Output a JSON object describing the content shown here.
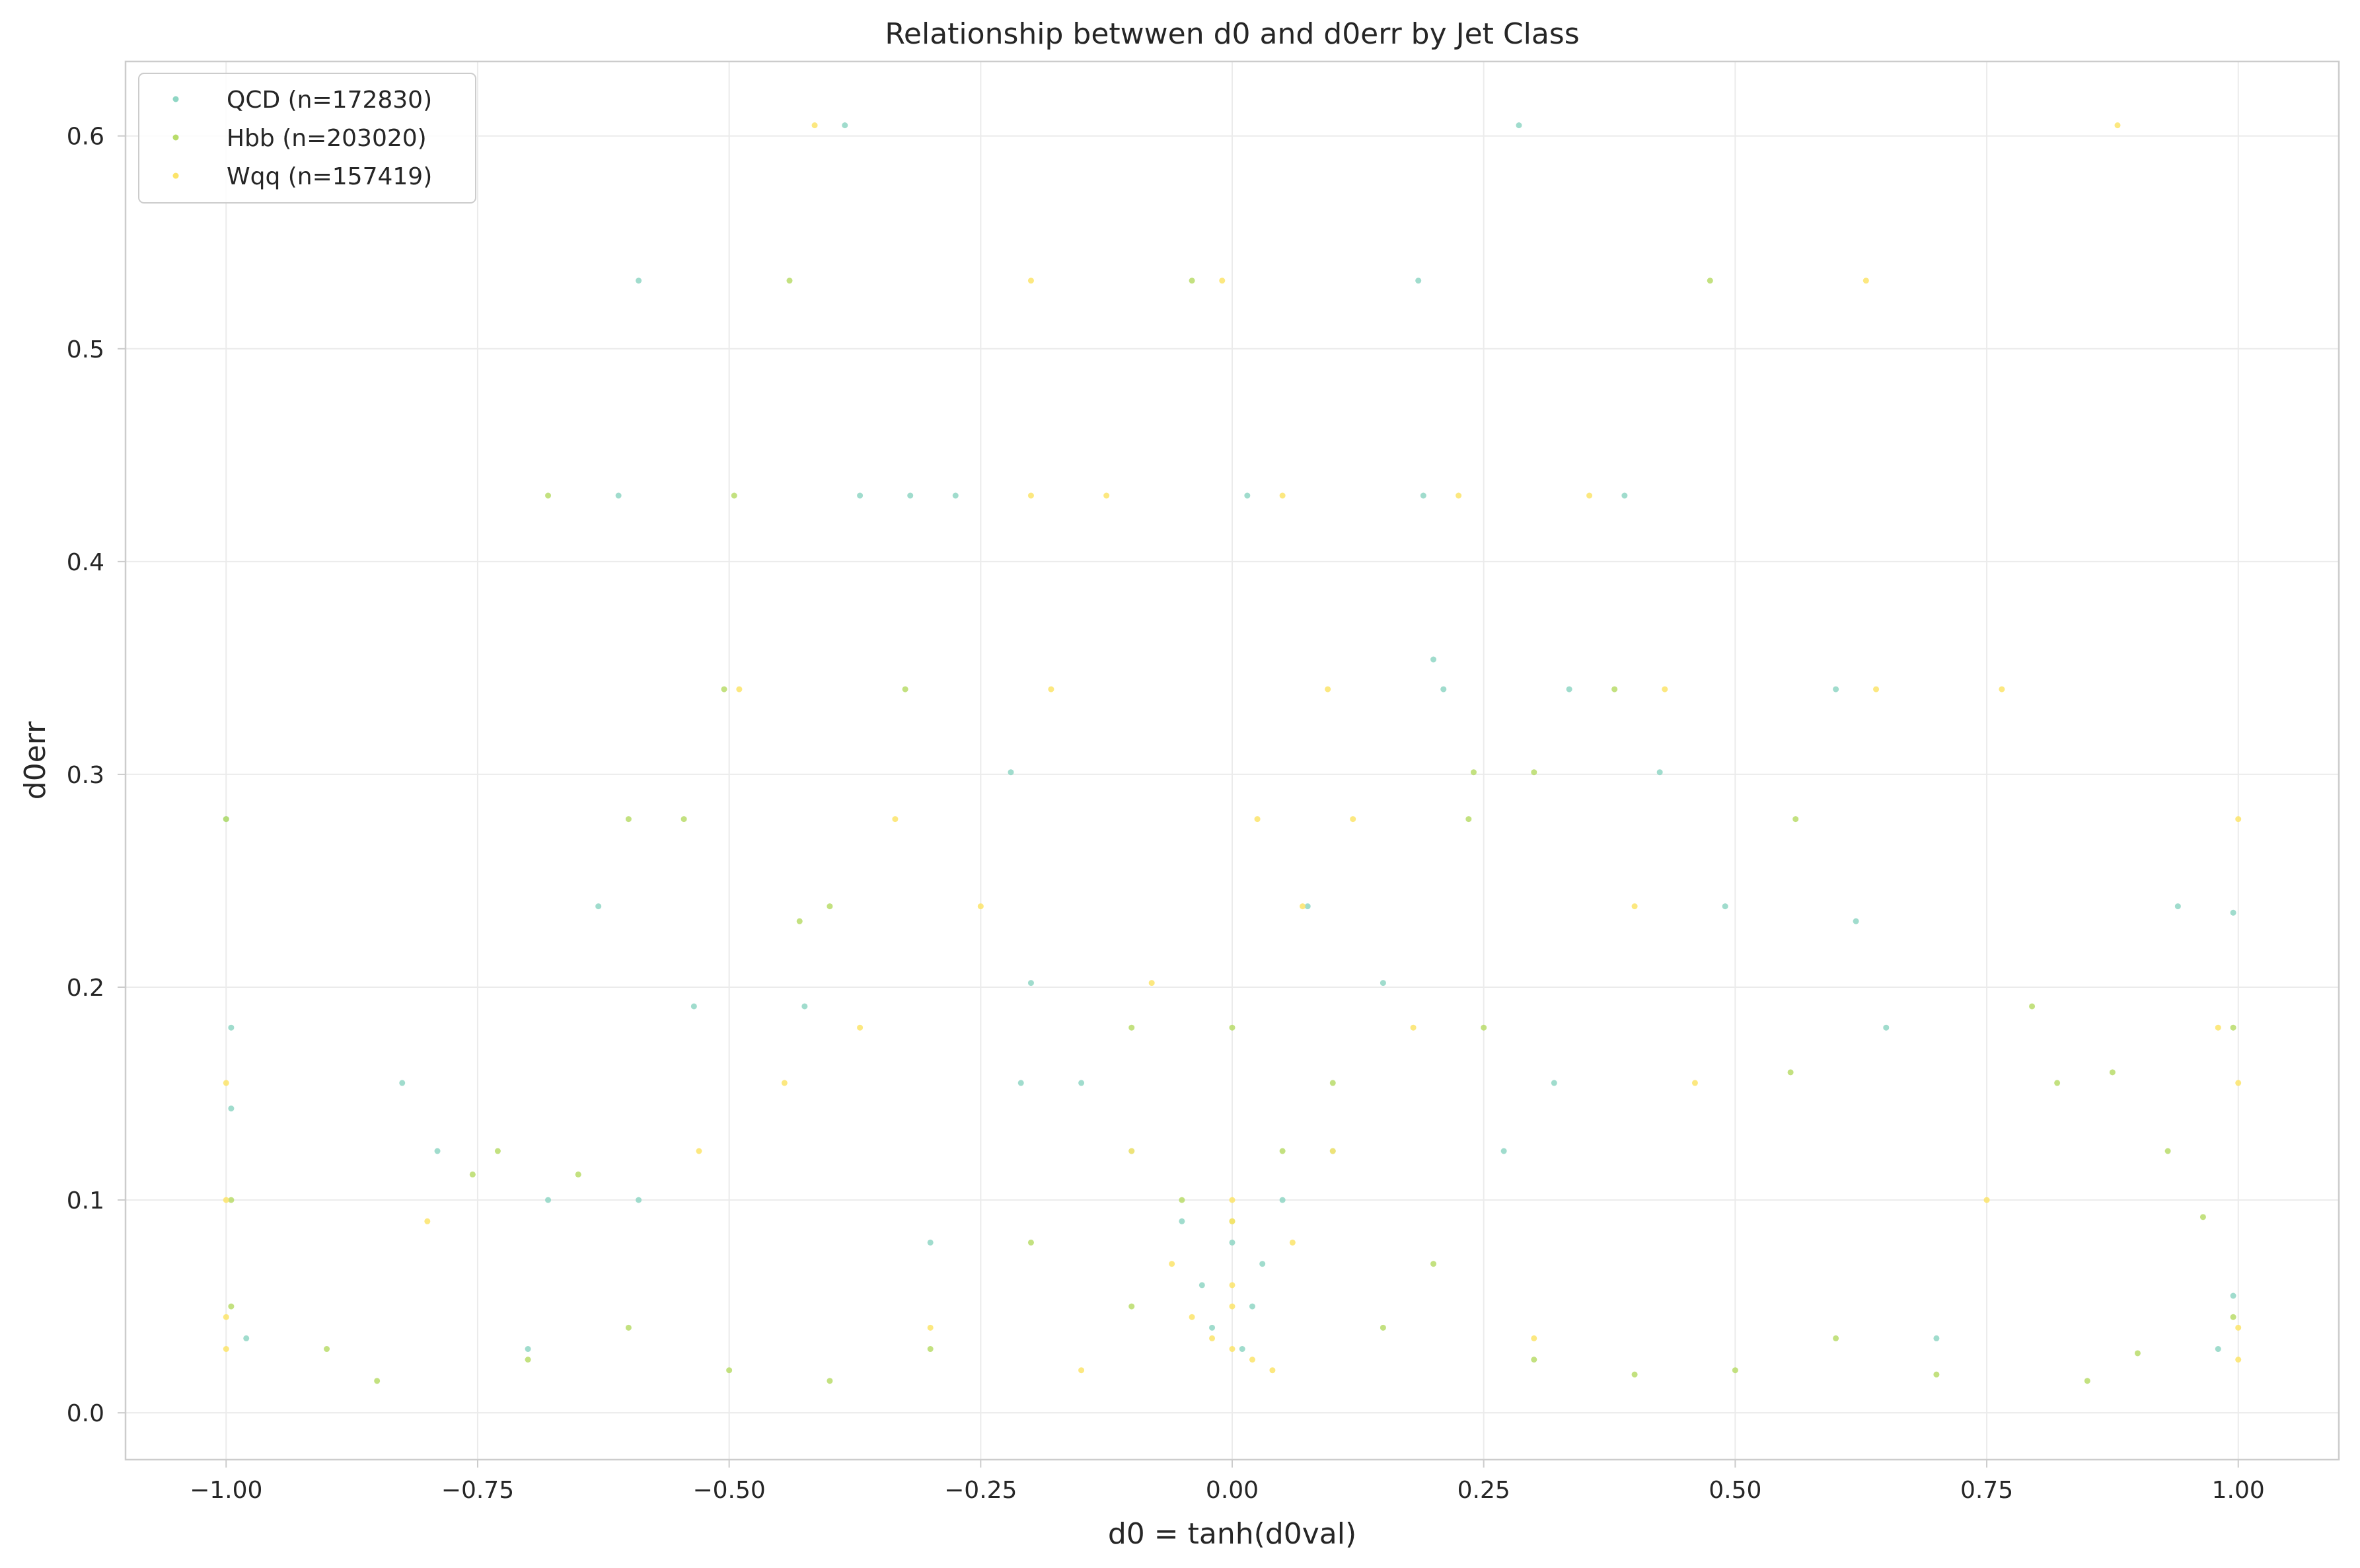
{
  "chart_data": {
    "type": "scatter",
    "title": "Relationship betwwen d0 and d0err by Jet Class",
    "xlabel": "d0 = tanh(d0val)",
    "ylabel": "d0err",
    "xlim": [
      -1.1,
      1.1
    ],
    "ylim": [
      -0.022,
      0.635
    ],
    "x_ticks": [
      -1.0,
      -0.75,
      -0.5,
      -0.25,
      0.0,
      0.25,
      0.5,
      0.75,
      1.0
    ],
    "x_tick_labels": [
      "−1.00",
      "−0.75",
      "−0.50",
      "−0.25",
      "0.00",
      "0.25",
      "0.50",
      "0.75",
      "1.00"
    ],
    "y_ticks": [
      0.0,
      0.1,
      0.2,
      0.3,
      0.4,
      0.5,
      0.6
    ],
    "y_tick_labels": [
      "0.0",
      "0.1",
      "0.2",
      "0.3",
      "0.4",
      "0.5",
      "0.6"
    ],
    "grid": true,
    "legend_position": "top-left",
    "series": [
      {
        "name": "QCD (n=172830)",
        "color": "#8fd6c4",
        "points": [
          [
            -1.0,
            0.279
          ],
          [
            -0.995,
            0.181
          ],
          [
            -0.995,
            0.143
          ],
          [
            -0.59,
            0.532
          ],
          [
            -0.385,
            0.605
          ],
          [
            -0.61,
            0.431
          ],
          [
            -0.37,
            0.431
          ],
          [
            -0.32,
            0.431
          ],
          [
            -0.275,
            0.431
          ],
          [
            0.015,
            0.431
          ],
          [
            0.285,
            0.605
          ],
          [
            0.185,
            0.532
          ],
          [
            0.2,
            0.354
          ],
          [
            0.21,
            0.34
          ],
          [
            -0.22,
            0.301
          ],
          [
            0.425,
            0.301
          ],
          [
            -0.63,
            0.238
          ],
          [
            -0.535,
            0.191
          ],
          [
            -0.425,
            0.191
          ],
          [
            -0.825,
            0.155
          ],
          [
            -0.79,
            0.123
          ],
          [
            -0.68,
            0.1
          ],
          [
            -0.59,
            0.1
          ],
          [
            -0.2,
            0.202
          ],
          [
            0.075,
            0.238
          ],
          [
            0.15,
            0.202
          ],
          [
            0.62,
            0.231
          ],
          [
            0.65,
            0.181
          ],
          [
            0.94,
            0.238
          ],
          [
            0.995,
            0.235
          ],
          [
            0.32,
            0.155
          ],
          [
            -0.15,
            0.155
          ],
          [
            -0.1,
            0.123
          ],
          [
            0.1,
            0.123
          ],
          [
            0.05,
            0.1
          ],
          [
            -0.05,
            0.09
          ],
          [
            0.0,
            0.08
          ],
          [
            0.03,
            0.07
          ],
          [
            -0.03,
            0.06
          ],
          [
            0.02,
            0.05
          ],
          [
            -0.02,
            0.04
          ],
          [
            0.01,
            0.03
          ],
          [
            0.6,
            0.34
          ],
          [
            0.49,
            0.238
          ],
          [
            0.19,
            0.431
          ],
          [
            0.39,
            0.431
          ],
          [
            0.335,
            0.34
          ],
          [
            -0.21,
            0.155
          ],
          [
            0.27,
            0.123
          ],
          [
            -0.3,
            0.08
          ],
          [
            0.98,
            0.03
          ],
          [
            0.995,
            0.055
          ],
          [
            -0.98,
            0.035
          ],
          [
            0.7,
            0.035
          ],
          [
            -0.7,
            0.03
          ]
        ]
      },
      {
        "name": "Hbb (n=203020)",
        "color": "#b8dc6a",
        "points": [
          [
            -1.0,
            0.279
          ],
          [
            -0.44,
            0.532
          ],
          [
            -0.04,
            0.532
          ],
          [
            0.475,
            0.532
          ],
          [
            -0.68,
            0.431
          ],
          [
            -0.495,
            0.431
          ],
          [
            -0.505,
            0.34
          ],
          [
            -0.325,
            0.34
          ],
          [
            0.3,
            0.301
          ],
          [
            -0.6,
            0.279
          ],
          [
            -0.545,
            0.279
          ],
          [
            -0.43,
            0.231
          ],
          [
            -0.4,
            0.238
          ],
          [
            -0.73,
            0.123
          ],
          [
            -0.65,
            0.112
          ],
          [
            -0.755,
            0.112
          ],
          [
            0.555,
            0.16
          ],
          [
            0.82,
            0.155
          ],
          [
            0.875,
            0.16
          ],
          [
            0.795,
            0.191
          ],
          [
            0.56,
            0.279
          ],
          [
            0.38,
            0.34
          ],
          [
            0.24,
            0.301
          ],
          [
            0.235,
            0.279
          ],
          [
            0.0,
            0.181
          ],
          [
            -0.1,
            0.181
          ],
          [
            0.1,
            0.155
          ],
          [
            0.05,
            0.123
          ],
          [
            -0.05,
            0.1
          ],
          [
            0.0,
            0.09
          ],
          [
            -0.2,
            0.08
          ],
          [
            0.2,
            0.07
          ],
          [
            -0.1,
            0.05
          ],
          [
            0.15,
            0.04
          ],
          [
            -0.3,
            0.03
          ],
          [
            0.3,
            0.025
          ],
          [
            -0.5,
            0.02
          ],
          [
            0.5,
            0.02
          ],
          [
            -0.7,
            0.025
          ],
          [
            0.7,
            0.018
          ],
          [
            -0.9,
            0.03
          ],
          [
            0.9,
            0.028
          ],
          [
            -0.995,
            0.05
          ],
          [
            0.995,
            0.045
          ],
          [
            -0.85,
            0.015
          ],
          [
            0.85,
            0.015
          ],
          [
            -0.6,
            0.04
          ],
          [
            0.6,
            0.035
          ],
          [
            -0.4,
            0.015
          ],
          [
            0.4,
            0.018
          ],
          [
            0.965,
            0.092
          ],
          [
            0.93,
            0.123
          ],
          [
            0.995,
            0.181
          ],
          [
            -0.995,
            0.1
          ],
          [
            0.25,
            0.181
          ]
        ]
      },
      {
        "name": "Wqq (n=157419)",
        "color": "#fce46a",
        "points": [
          [
            -0.415,
            0.605
          ],
          [
            0.88,
            0.605
          ],
          [
            -0.2,
            0.532
          ],
          [
            -0.01,
            0.532
          ],
          [
            0.63,
            0.532
          ],
          [
            -0.2,
            0.431
          ],
          [
            -0.125,
            0.431
          ],
          [
            0.05,
            0.431
          ],
          [
            0.225,
            0.431
          ],
          [
            0.355,
            0.431
          ],
          [
            -0.49,
            0.34
          ],
          [
            -0.18,
            0.34
          ],
          [
            0.095,
            0.34
          ],
          [
            0.43,
            0.34
          ],
          [
            0.64,
            0.34
          ],
          [
            0.765,
            0.34
          ],
          [
            -0.335,
            0.279
          ],
          [
            0.025,
            0.279
          ],
          [
            0.12,
            0.279
          ],
          [
            -0.25,
            0.238
          ],
          [
            0.07,
            0.238
          ],
          [
            0.4,
            0.238
          ],
          [
            -0.08,
            0.202
          ],
          [
            0.18,
            0.181
          ],
          [
            -0.37,
            0.181
          ],
          [
            -0.445,
            0.155
          ],
          [
            0.46,
            0.155
          ],
          [
            -0.53,
            0.123
          ],
          [
            -1.0,
            0.155
          ],
          [
            -1.0,
            0.1
          ],
          [
            1.0,
            0.155
          ],
          [
            1.0,
            0.279
          ],
          [
            0.98,
            0.181
          ],
          [
            0.0,
            0.03
          ],
          [
            0.02,
            0.025
          ],
          [
            -0.02,
            0.035
          ],
          [
            0.04,
            0.02
          ],
          [
            -0.04,
            0.045
          ],
          [
            0.0,
            0.05
          ],
          [
            0.0,
            0.06
          ],
          [
            -0.06,
            0.07
          ],
          [
            0.06,
            0.08
          ],
          [
            0.0,
            0.09
          ],
          [
            0.0,
            0.1
          ],
          [
            -0.1,
            0.123
          ],
          [
            0.1,
            0.123
          ],
          [
            -1.0,
            0.03
          ],
          [
            -1.0,
            0.045
          ],
          [
            1.0,
            0.025
          ],
          [
            1.0,
            0.04
          ],
          [
            -0.8,
            0.09
          ],
          [
            0.75,
            0.1
          ],
          [
            -0.3,
            0.04
          ],
          [
            0.3,
            0.035
          ],
          [
            -0.15,
            0.02
          ]
        ]
      }
    ]
  }
}
